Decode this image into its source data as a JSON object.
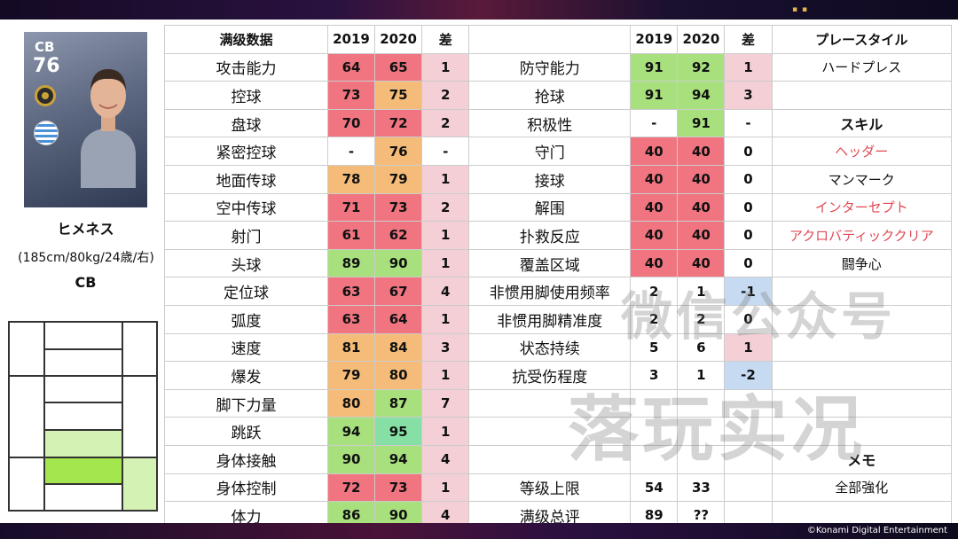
{
  "card": {
    "position": "CB",
    "rating": "76"
  },
  "player": {
    "name": "ヒメネス",
    "info": "(185cm/80kg/24歳/右)",
    "position": "CB"
  },
  "left_table": {
    "header": [
      "满级数据",
      "2019",
      "2020",
      "差"
    ],
    "rows": [
      {
        "label": "攻击能力",
        "y2019": "64",
        "y2020": "65",
        "diff": "1"
      },
      {
        "label": "控球",
        "y2019": "73",
        "y2020": "75",
        "diff": "2"
      },
      {
        "label": "盘球",
        "y2019": "70",
        "y2020": "72",
        "diff": "2"
      },
      {
        "label": "紧密控球",
        "y2019": "-",
        "y2020": "76",
        "diff": "-"
      },
      {
        "label": "地面传球",
        "y2019": "78",
        "y2020": "79",
        "diff": "1"
      },
      {
        "label": "空中传球",
        "y2019": "71",
        "y2020": "73",
        "diff": "2"
      },
      {
        "label": "射门",
        "y2019": "61",
        "y2020": "62",
        "diff": "1"
      },
      {
        "label": "头球",
        "y2019": "89",
        "y2020": "90",
        "diff": "1"
      },
      {
        "label": "定位球",
        "y2019": "63",
        "y2020": "67",
        "diff": "4"
      },
      {
        "label": "弧度",
        "y2019": "63",
        "y2020": "64",
        "diff": "1"
      },
      {
        "label": "速度",
        "y2019": "81",
        "y2020": "84",
        "diff": "3"
      },
      {
        "label": "爆发",
        "y2019": "79",
        "y2020": "80",
        "diff": "1"
      },
      {
        "label": "脚下力量",
        "y2019": "80",
        "y2020": "87",
        "diff": "7"
      },
      {
        "label": "跳跃",
        "y2019": "94",
        "y2020": "95",
        "diff": "1"
      },
      {
        "label": "身体接触",
        "y2019": "90",
        "y2020": "94",
        "diff": "4"
      },
      {
        "label": "身体控制",
        "y2019": "72",
        "y2020": "73",
        "diff": "1"
      },
      {
        "label": "体力",
        "y2019": "86",
        "y2020": "90",
        "diff": "4"
      }
    ]
  },
  "right_table": {
    "header": [
      "",
      "2019",
      "2020",
      "差",
      "プレースタイル"
    ],
    "rows": [
      {
        "label": "防守能力",
        "y2019": "91",
        "y2020": "92",
        "diff": "1",
        "side": "ハードプレス"
      },
      {
        "label": "抢球",
        "y2019": "91",
        "y2020": "94",
        "diff": "3",
        "side": ""
      },
      {
        "label": "积极性",
        "y2019": "-",
        "y2020": "91",
        "diff": "-",
        "side": "スキル"
      },
      {
        "label": "守门",
        "y2019": "40",
        "y2020": "40",
        "diff": "0",
        "side": "ヘッダー"
      },
      {
        "label": "接球",
        "y2019": "40",
        "y2020": "40",
        "diff": "0",
        "side": "マンマーク"
      },
      {
        "label": "解围",
        "y2019": "40",
        "y2020": "40",
        "diff": "0",
        "side": "インターセプト"
      },
      {
        "label": "扑救反应",
        "y2019": "40",
        "y2020": "40",
        "diff": "0",
        "side": "アクロバティッククリア"
      },
      {
        "label": "覆盖区域",
        "y2019": "40",
        "y2020": "40",
        "diff": "0",
        "side": "闘争心"
      },
      {
        "label": "非惯用脚使用频率",
        "y2019": "2",
        "y2020": "1",
        "diff": "-1",
        "side": ""
      },
      {
        "label": "非惯用脚精准度",
        "y2019": "2",
        "y2020": "2",
        "diff": "0",
        "side": ""
      },
      {
        "label": "状态持续",
        "y2019": "5",
        "y2020": "6",
        "diff": "1",
        "side": ""
      },
      {
        "label": "抗受伤程度",
        "y2019": "3",
        "y2020": "1",
        "diff": "-2",
        "side": ""
      },
      {
        "label": "",
        "y2019": "",
        "y2020": "",
        "diff": "",
        "side": ""
      },
      {
        "label": "",
        "y2019": "",
        "y2020": "",
        "diff": "",
        "side": ""
      },
      {
        "label": "",
        "y2019": "",
        "y2020": "",
        "diff": "",
        "side": "メモ"
      },
      {
        "label": "等级上限",
        "y2019": "54",
        "y2020": "33",
        "diff": "",
        "side": "全部強化"
      },
      {
        "label": "满级总评",
        "y2019": "89",
        "y2020": "??",
        "diff": "",
        "side": ""
      }
    ]
  },
  "watermark": {
    "line1": "微信公众号",
    "line2": "落玩实况"
  },
  "copyright": "©Konami Digital Entertainment",
  "colors": {
    "red": "#f07580",
    "orange": "#f4bc78",
    "green": "#a8e07e",
    "teal": "#86e0a6",
    "pink": "#f4cfd6",
    "blue": "#c6daf2",
    "skill_red": "#e04a54"
  },
  "icons": {
    "badge": "coin-badge-icon",
    "flag": "uruguay-flag-icon",
    "portrait": "player-portrait-icon"
  }
}
